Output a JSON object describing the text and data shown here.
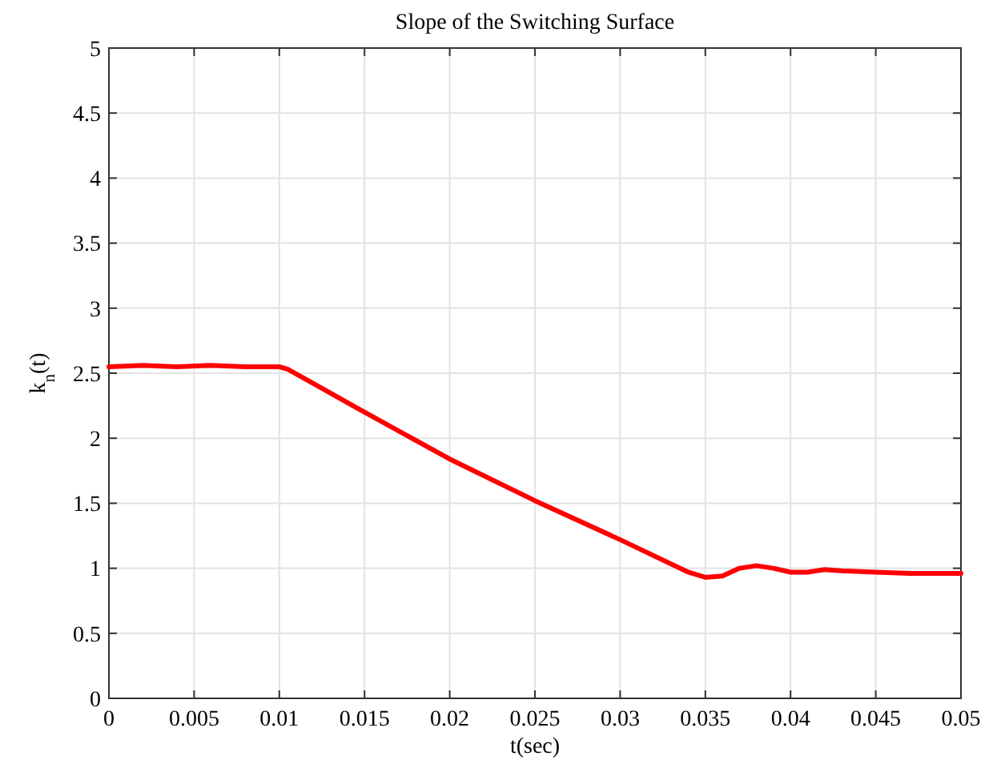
{
  "chart_data": {
    "type": "line",
    "title": "Slope of the Switching Surface",
    "xlabel": "t(sec)",
    "ylabel": "k$_{n}$(t)",
    "x": [
      0,
      0.002,
      0.004,
      0.006,
      0.008,
      0.01,
      0.0105,
      0.012,
      0.015,
      0.02,
      0.025,
      0.03,
      0.034,
      0.035,
      0.036,
      0.037,
      0.038,
      0.039,
      0.04,
      0.041,
      0.042,
      0.043,
      0.045,
      0.047,
      0.05
    ],
    "series": [
      {
        "color": "#ff0000",
        "values": [
          2.55,
          2.56,
          2.55,
          2.56,
          2.55,
          2.55,
          2.53,
          2.42,
          2.2,
          1.84,
          1.52,
          1.22,
          0.97,
          0.93,
          0.94,
          1.0,
          1.02,
          1.0,
          0.97,
          0.97,
          0.99,
          0.98,
          0.97,
          0.96,
          0.96
        ]
      }
    ],
    "xlim": [
      0,
      0.05
    ],
    "xticks": [
      0,
      0.005,
      0.01,
      0.015,
      0.02,
      0.025,
      0.03,
      0.035,
      0.04,
      0.045,
      0.05
    ],
    "ylim": [
      0,
      5
    ],
    "yticks": [
      0,
      0.5,
      1,
      1.5,
      2,
      2.5,
      3,
      3.5,
      4,
      4.5,
      5
    ],
    "grid": true,
    "marker": "none",
    "line_style": "solid"
  }
}
